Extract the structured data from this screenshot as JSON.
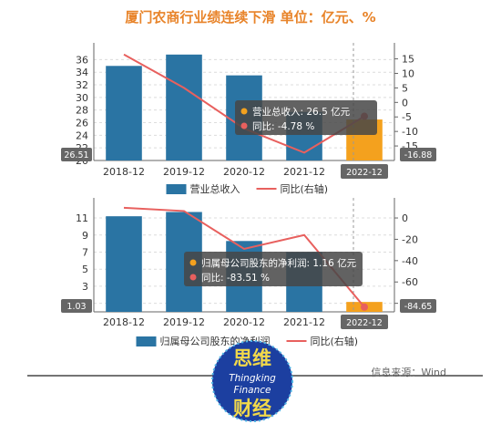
{
  "title": "厦门农商行业绩连续下滑 单位：亿元、%",
  "colors": {
    "bar": "#2a74a3",
    "bar_highlight": "#f4a11e",
    "line": "#e8605e",
    "title": "#e8842a"
  },
  "chart_data": [
    {
      "type": "bar",
      "categories": [
        "2018-12",
        "2019-12",
        "2020-12",
        "2021-12",
        "2022-12"
      ],
      "series": [
        {
          "name": "营业总收入",
          "type": "bar",
          "axis": "left",
          "values": [
            35.0,
            36.8,
            33.5,
            27.7,
            26.5
          ]
        },
        {
          "name": "同比(右轴)",
          "type": "line",
          "axis": "right",
          "values": [
            16.5,
            5.0,
            -9.0,
            -17.3,
            -4.78
          ]
        }
      ],
      "left_axis": {
        "ticks": [
          "20",
          "22",
          "24",
          "26",
          "28",
          "30",
          "32",
          "34",
          "36"
        ],
        "range": [
          20,
          37.5
        ]
      },
      "right_axis": {
        "ticks": [
          "-15",
          "-10",
          "-5",
          "0",
          "5",
          "10",
          "15"
        ],
        "range": [
          -20,
          18
        ]
      },
      "crosshair": {
        "left_value": "26.51",
        "right_value": "-16.88",
        "category": "2022-12"
      },
      "tooltip": {
        "line1": "营业总收入: 26.5  亿元",
        "line2": "同比: -4.78 %"
      },
      "legend": [
        "营业总收入",
        "同比(右轴)"
      ],
      "grid": true
    },
    {
      "type": "bar",
      "categories": [
        "2018-12",
        "2019-12",
        "2020-12",
        "2021-12",
        "2022-12"
      ],
      "series": [
        {
          "name": "归属母公司股东的净利润",
          "type": "bar",
          "axis": "left",
          "values": [
            11.2,
            11.7,
            8.3,
            7.0,
            1.16
          ]
        },
        {
          "name": "同比(右轴)",
          "type": "line",
          "axis": "right",
          "values": [
            9.5,
            6.5,
            -29.0,
            -16.0,
            -83.51
          ]
        }
      ],
      "left_axis": {
        "ticks": [
          "1",
          "3",
          "5",
          "7",
          "9",
          "11"
        ],
        "range": [
          0,
          12.5
        ]
      },
      "right_axis": {
        "ticks": [
          "-80",
          "-60",
          "-40",
          "-20",
          "0"
        ],
        "range": [
          -88,
          12
        ]
      },
      "crosshair": {
        "left_value": "1.03",
        "right_value": "-84.65",
        "category": "2022-12"
      },
      "tooltip": {
        "line1": "归属母公司股东的净利润: 1.16  亿元",
        "line2": "同比: -83.51  %"
      },
      "legend": [
        "归属母公司股东的净利润",
        "同比(右轴)"
      ],
      "grid": true
    }
  ],
  "source": "信息来源：Wind",
  "logo": {
    "top": "思维",
    "en1": "Thingking",
    "en2": "Finance",
    "bottom": "财经"
  }
}
